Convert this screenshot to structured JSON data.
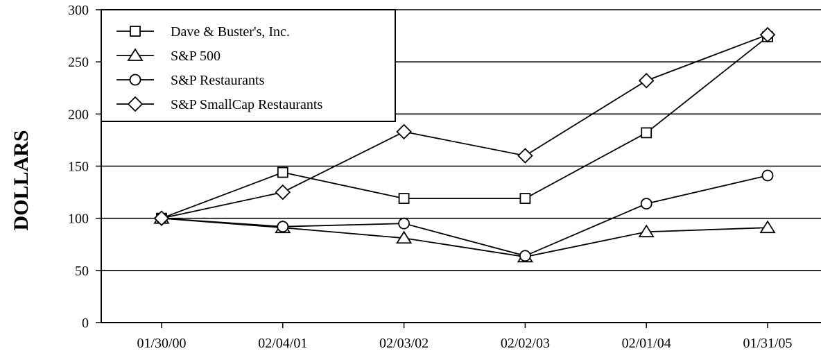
{
  "chart_data": {
    "type": "line",
    "categories": [
      "01/30/00",
      "02/04/01",
      "02/03/02",
      "02/02/03",
      "02/01/04",
      "01/31/05"
    ],
    "series": [
      {
        "name": "Dave & Buster's, Inc.",
        "marker": "square",
        "values": [
          100,
          144,
          119,
          119,
          182,
          274
        ]
      },
      {
        "name": "S&P 500",
        "marker": "triangle",
        "values": [
          100,
          91,
          81,
          63,
          87,
          91
        ]
      },
      {
        "name": "S&P Restaurants",
        "marker": "circle",
        "values": [
          100,
          92,
          95,
          64,
          114,
          141
        ]
      },
      {
        "name": "S&P SmallCap Restaurants",
        "marker": "diamond",
        "values": [
          100,
          125,
          183,
          160,
          232,
          276
        ]
      }
    ],
    "ylabel": "DOLLARS",
    "xlabel": "",
    "title": "",
    "ylim": [
      0,
      300
    ],
    "yticks": [
      0,
      50,
      100,
      150,
      200,
      250,
      300
    ],
    "grid": true,
    "legend_position": "top-left",
    "colors": {
      "line": "#000000",
      "marker_fill": "#ffffff",
      "background": "#ffffff"
    }
  }
}
